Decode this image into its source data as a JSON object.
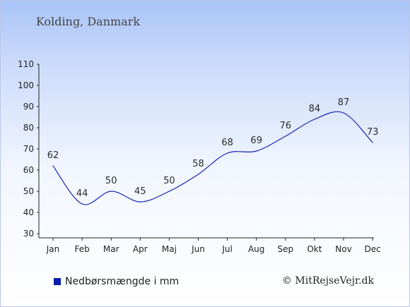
{
  "title": "Kolding, Danmark",
  "legend_label": "Nedbørsmængde i mm",
  "copyright": "© MitRejseVejr.dk",
  "colors": {
    "series": "#1a23b0",
    "legend": "#0b1da8",
    "axis": "#222222"
  },
  "chart_data": {
    "type": "line",
    "title": "Kolding, Danmark",
    "categories": [
      "Jan",
      "Feb",
      "Mar",
      "Apr",
      "Maj",
      "Jun",
      "Jul",
      "Aug",
      "Sep",
      "Okt",
      "Nov",
      "Dec"
    ],
    "series": [
      {
        "name": "Nedbørsmængde i mm",
        "values": [
          62,
          44,
          50,
          45,
          50,
          58,
          68,
          69,
          76,
          84,
          87,
          73
        ]
      }
    ],
    "y_ticks": [
      30,
      40,
      50,
      60,
      70,
      80,
      90,
      100,
      110
    ],
    "ylim": [
      30,
      110
    ],
    "grid": false,
    "legend": "bottom-left"
  }
}
